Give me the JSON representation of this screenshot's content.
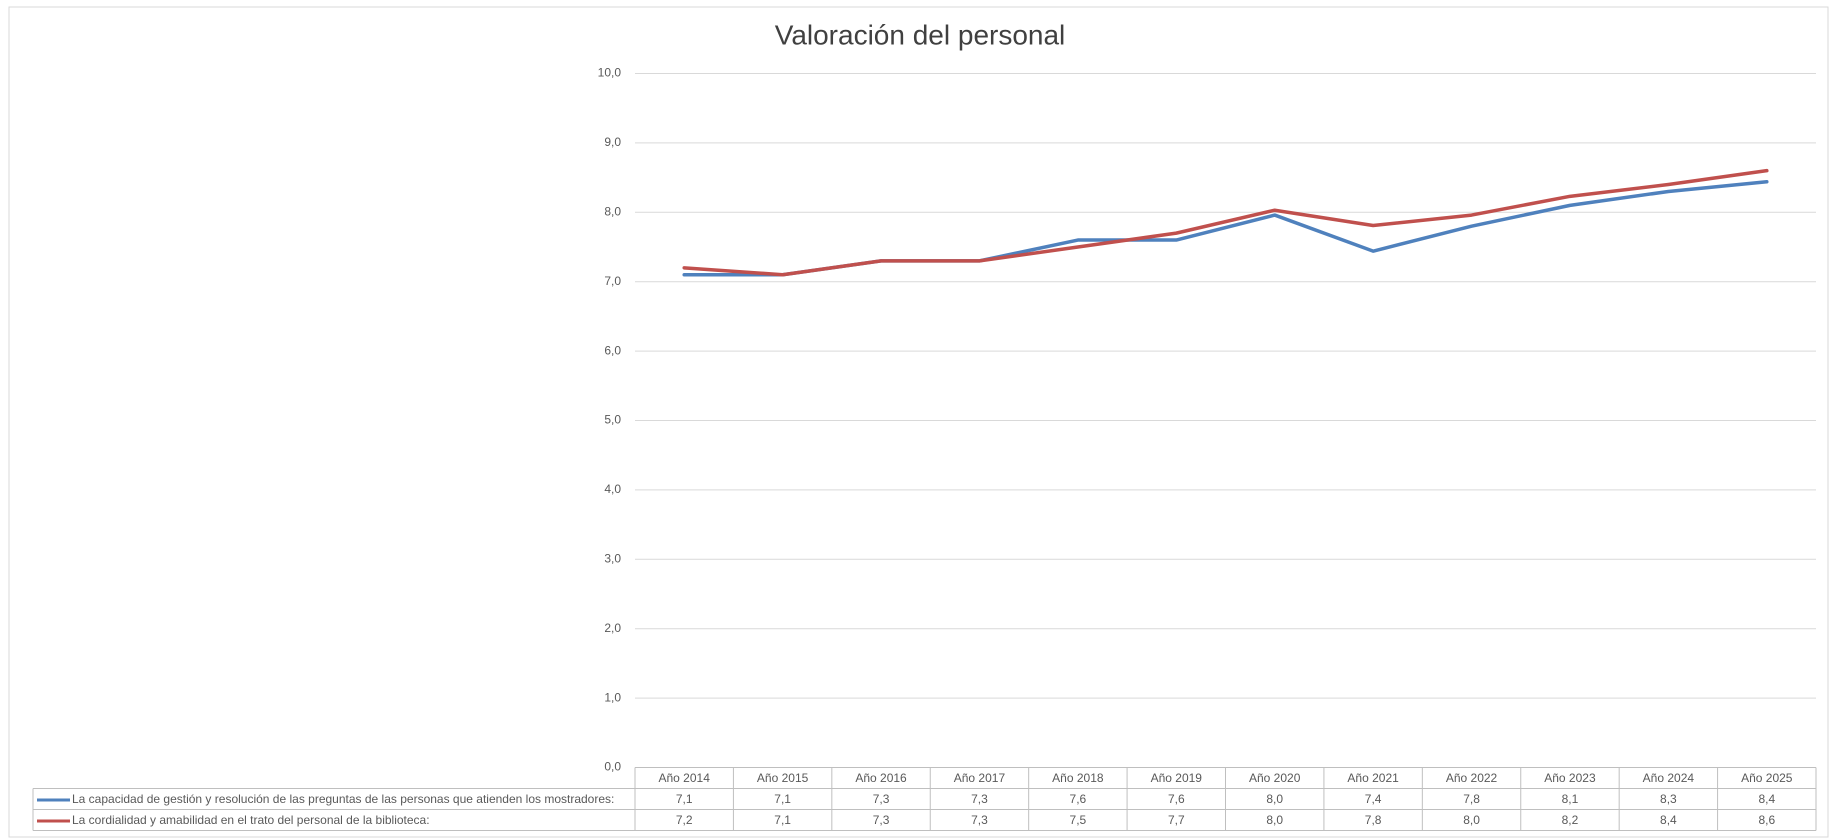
{
  "chart_data": {
    "type": "line",
    "title": "Valoración del personal",
    "categories": [
      "Año 2014",
      "Año 2015",
      "Año 2016",
      "Año 2017",
      "Año 2018",
      "Año 2019",
      "Año 2020",
      "Año 2021",
      "Año 2022",
      "Año 2023",
      "Año 2024",
      "Año 2025"
    ],
    "series": [
      {
        "name": "La capacidad de gestión y resolución de las preguntas de las personas que atienden los mostradores:",
        "color": "#4f81bd",
        "values": [
          7.1,
          7.1,
          7.3,
          7.3,
          7.6,
          7.6,
          7.96,
          7.44,
          7.8,
          8.1,
          8.3,
          8.44
        ],
        "value_labels": [
          "7,1",
          "7,1",
          "7,3",
          "7,3",
          "7,6",
          "7,6",
          "8,0",
          "7,4",
          "7,8",
          "8,1",
          "8,3",
          "8,4"
        ]
      },
      {
        "name": "La cordialidad y amabilidad en el trato del personal de la biblioteca:",
        "color": "#c0504d",
        "values": [
          7.2,
          7.1,
          7.3,
          7.3,
          7.5,
          7.7,
          8.03,
          7.81,
          7.96,
          8.23,
          8.4,
          8.6
        ],
        "value_labels": [
          "7,2",
          "7,1",
          "7,3",
          "7,3",
          "7,5",
          "7,7",
          "8,0",
          "7,8",
          "8,0",
          "8,2",
          "8,4",
          "8,6"
        ]
      }
    ],
    "ylim": [
      0,
      10
    ],
    "yticks": [
      {
        "value": 0,
        "label": "0,0"
      },
      {
        "value": 1,
        "label": "1,0"
      },
      {
        "value": 2,
        "label": "2,0"
      },
      {
        "value": 3,
        "label": "3,0"
      },
      {
        "value": 4,
        "label": "4,0"
      },
      {
        "value": 5,
        "label": "5,0"
      },
      {
        "value": 6,
        "label": "6,0"
      },
      {
        "value": 7,
        "label": "7,0"
      },
      {
        "value": 8,
        "label": "8,0"
      },
      {
        "value": 9,
        "label": "9,0"
      },
      {
        "value": 10,
        "label": "10,0"
      }
    ],
    "grid": true
  }
}
